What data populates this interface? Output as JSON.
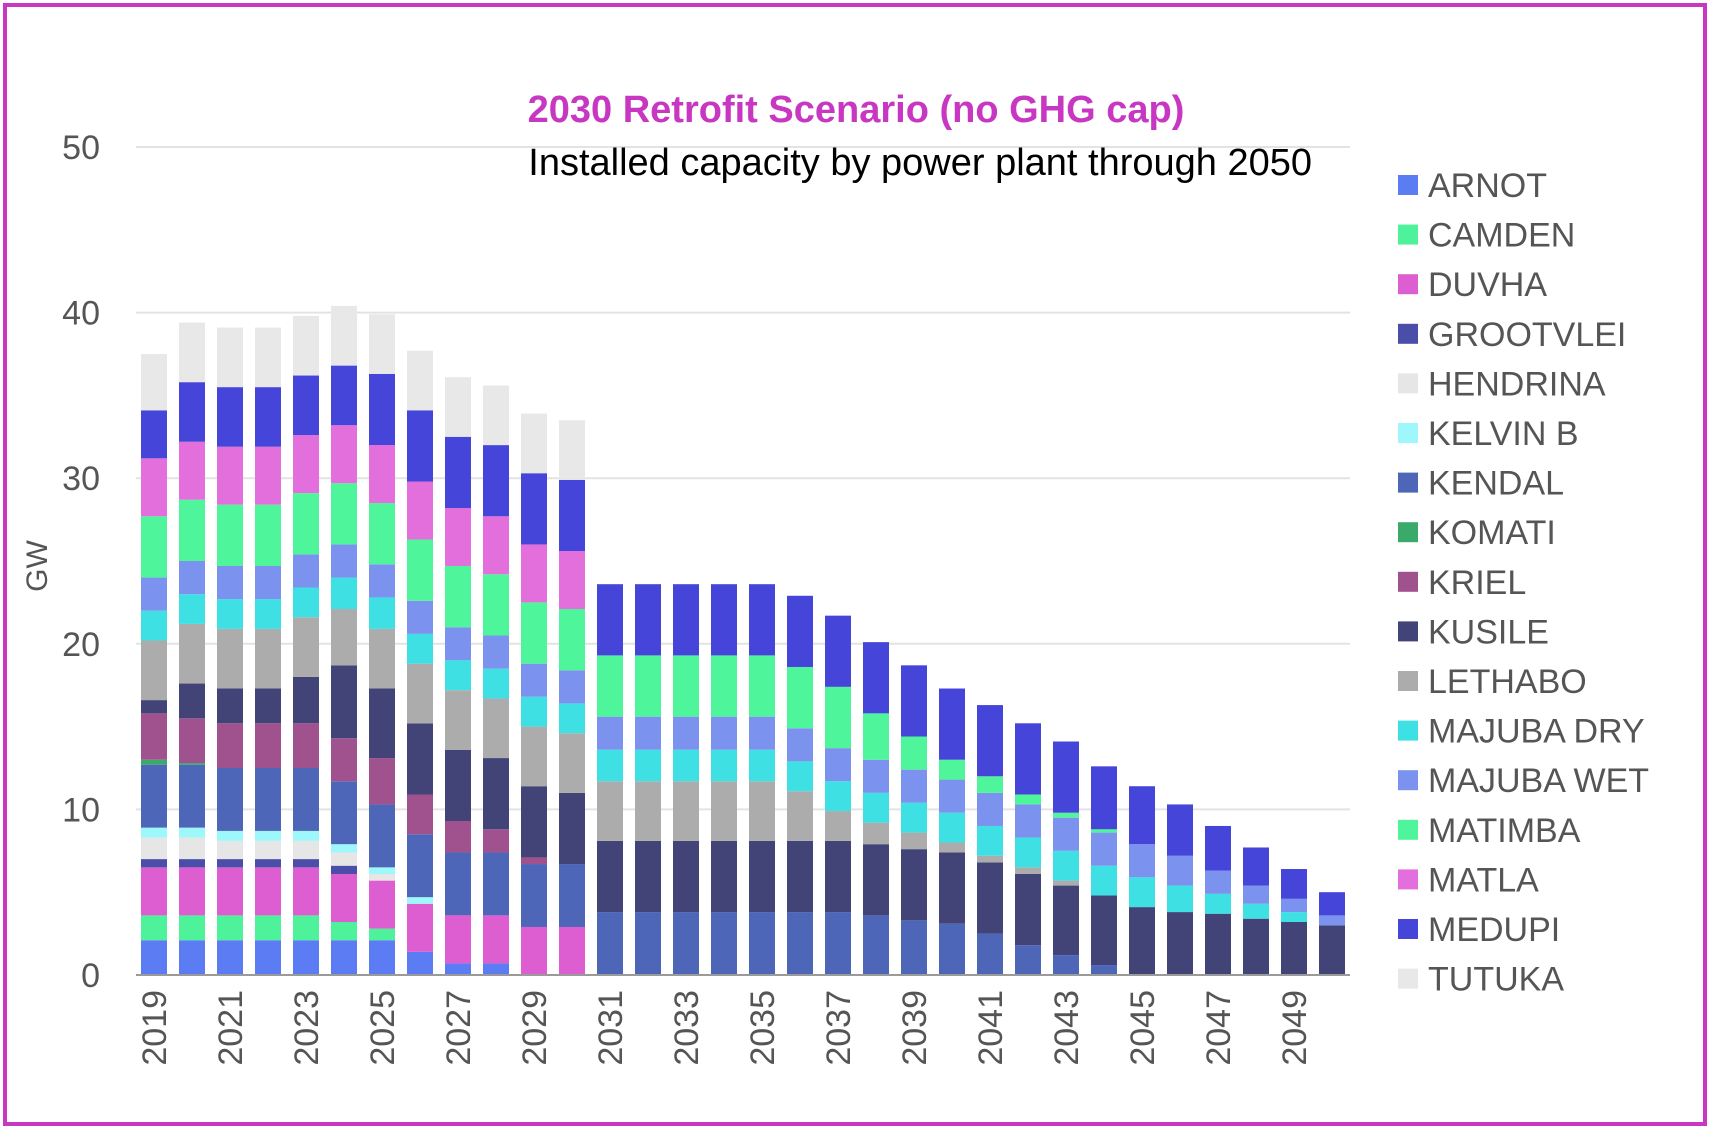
{
  "chart_data": {
    "type": "bar",
    "stacked": true,
    "title": "2030 Retrofit Scenario (no GHG cap)",
    "subtitle": "Installed capacity by power plant through 2050",
    "xlabel": "",
    "ylabel": "GW",
    "ylim": [
      0,
      50
    ],
    "yticks": [
      0,
      10,
      20,
      30,
      40,
      50
    ],
    "grid": true,
    "legend_position": "right",
    "categories": [
      "2019",
      "2020",
      "2021",
      "2022",
      "2023",
      "2024",
      "2025",
      "2026",
      "2027",
      "2028",
      "2029",
      "2030",
      "2031",
      "2032",
      "2033",
      "2034",
      "2035",
      "2036",
      "2037",
      "2038",
      "2039",
      "2040",
      "2041",
      "2042",
      "2043",
      "2044",
      "2045",
      "2046",
      "2047",
      "2048",
      "2049",
      "2050"
    ],
    "x_tick_labels": [
      "2019",
      "2021",
      "2023",
      "2025",
      "2027",
      "2029",
      "2031",
      "2033",
      "2035",
      "2037",
      "2039",
      "2041",
      "2043",
      "2045",
      "2047",
      "2049"
    ],
    "series": [
      {
        "name": "ARNOT",
        "color": "#5b7cf2",
        "values": [
          2.1,
          2.1,
          2.1,
          2.1,
          2.1,
          2.1,
          2.1,
          1.4,
          0.7,
          0.7,
          0,
          0,
          0,
          0,
          0,
          0,
          0,
          0,
          0,
          0,
          0,
          0,
          0,
          0,
          0,
          0,
          0,
          0,
          0,
          0,
          0,
          0
        ]
      },
      {
        "name": "CAMDEN",
        "color": "#4df29b",
        "values": [
          1.5,
          1.5,
          1.5,
          1.5,
          1.5,
          1.1,
          0.7,
          0,
          0,
          0,
          0,
          0,
          0,
          0,
          0,
          0,
          0,
          0,
          0,
          0,
          0,
          0,
          0,
          0,
          0,
          0,
          0,
          0,
          0,
          0,
          0,
          0
        ]
      },
      {
        "name": "DUVHA",
        "color": "#dd5ed0",
        "values": [
          2.9,
          2.9,
          2.9,
          2.9,
          2.9,
          2.9,
          2.9,
          2.9,
          2.9,
          2.9,
          2.9,
          2.9,
          0,
          0,
          0,
          0,
          0,
          0,
          0,
          0,
          0,
          0,
          0,
          0,
          0,
          0,
          0,
          0,
          0,
          0,
          0,
          0
        ]
      },
      {
        "name": "GROOTVLEI",
        "color": "#4a4ea8",
        "values": [
          0.5,
          0.5,
          0.5,
          0.5,
          0.5,
          0.5,
          0,
          0,
          0,
          0,
          0,
          0,
          0,
          0,
          0,
          0,
          0,
          0,
          0,
          0,
          0,
          0,
          0,
          0,
          0,
          0,
          0,
          0,
          0,
          0,
          0,
          0
        ]
      },
      {
        "name": "HENDRINA",
        "color": "#e6e6e6",
        "values": [
          1.3,
          1.3,
          1.1,
          1.1,
          1.1,
          0.8,
          0.4,
          0,
          0,
          0,
          0,
          0,
          0,
          0,
          0,
          0,
          0,
          0,
          0,
          0,
          0,
          0,
          0,
          0,
          0,
          0,
          0,
          0,
          0,
          0,
          0,
          0
        ]
      },
      {
        "name": "KELVIN B",
        "color": "#9ef7fa",
        "values": [
          0.6,
          0.6,
          0.6,
          0.6,
          0.6,
          0.5,
          0.4,
          0.4,
          0,
          0,
          0,
          0,
          0,
          0,
          0,
          0,
          0,
          0,
          0,
          0,
          0,
          0,
          0,
          0,
          0,
          0,
          0,
          0,
          0,
          0,
          0,
          0
        ]
      },
      {
        "name": "KENDAL",
        "color": "#4e66b8",
        "values": [
          3.8,
          3.8,
          3.8,
          3.8,
          3.8,
          3.8,
          3.8,
          3.8,
          3.8,
          3.8,
          3.8,
          3.8,
          3.8,
          3.8,
          3.8,
          3.8,
          3.8,
          3.8,
          3.8,
          3.6,
          3.3,
          3.1,
          2.5,
          1.8,
          1.2,
          0.6,
          0,
          0,
          0,
          0,
          0,
          0
        ]
      },
      {
        "name": "KOMATI",
        "color": "#3aaa6a",
        "values": [
          0.3,
          0.1,
          0,
          0,
          0,
          0,
          0,
          0,
          0,
          0,
          0,
          0,
          0,
          0,
          0,
          0,
          0,
          0,
          0,
          0,
          0,
          0,
          0,
          0,
          0,
          0,
          0,
          0,
          0,
          0,
          0,
          0
        ]
      },
      {
        "name": "KRIEL",
        "color": "#a0528e",
        "values": [
          2.8,
          2.7,
          2.7,
          2.7,
          2.7,
          2.6,
          2.8,
          2.4,
          1.9,
          1.4,
          0.4,
          0,
          0,
          0,
          0,
          0,
          0,
          0,
          0,
          0,
          0,
          0,
          0,
          0,
          0,
          0,
          0,
          0,
          0,
          0,
          0,
          0
        ]
      },
      {
        "name": "KUSILE",
        "color": "#424478",
        "values": [
          0.8,
          2.1,
          2.1,
          2.1,
          2.8,
          4.4,
          4.2,
          4.3,
          4.3,
          4.3,
          4.3,
          4.3,
          4.3,
          4.3,
          4.3,
          4.3,
          4.3,
          4.3,
          4.3,
          4.3,
          4.3,
          4.3,
          4.3,
          4.3,
          4.2,
          4.2,
          4.1,
          3.8,
          3.7,
          3.4,
          3.2,
          3.0
        ]
      },
      {
        "name": "LETHABO",
        "color": "#acacac",
        "values": [
          3.6,
          3.6,
          3.6,
          3.6,
          3.6,
          3.4,
          3.6,
          3.6,
          3.6,
          3.6,
          3.6,
          3.6,
          3.6,
          3.6,
          3.6,
          3.6,
          3.6,
          3.0,
          1.8,
          1.3,
          1.0,
          0.6,
          0.4,
          0.4,
          0.3,
          0,
          0,
          0,
          0,
          0,
          0,
          0
        ]
      },
      {
        "name": "MAJUBA DRY",
        "color": "#3ee0e3",
        "values": [
          1.8,
          1.8,
          1.8,
          1.8,
          1.8,
          1.9,
          1.9,
          1.8,
          1.8,
          1.8,
          1.8,
          1.8,
          1.9,
          1.9,
          1.9,
          1.9,
          1.9,
          1.8,
          1.8,
          1.8,
          1.8,
          1.8,
          1.8,
          1.8,
          1.8,
          1.8,
          1.8,
          1.6,
          1.2,
          0.9,
          0.6,
          0
        ]
      },
      {
        "name": "MAJUBA WET",
        "color": "#7b92ee",
        "values": [
          2.0,
          2.0,
          2.0,
          2.0,
          2.0,
          2.0,
          2.0,
          2.0,
          2.0,
          2.0,
          2.0,
          2.0,
          2.0,
          2.0,
          2.0,
          2.0,
          2.0,
          2.0,
          2.0,
          2.0,
          2.0,
          2.0,
          2.0,
          2.0,
          2.0,
          2.0,
          2.0,
          1.8,
          1.4,
          1.1,
          0.8,
          0.6
        ]
      },
      {
        "name": "MATIMBA",
        "color": "#4ef59a",
        "values": [
          3.7,
          3.7,
          3.7,
          3.7,
          3.7,
          3.7,
          3.7,
          3.7,
          3.7,
          3.7,
          3.7,
          3.7,
          3.7,
          3.7,
          3.7,
          3.7,
          3.7,
          3.7,
          3.7,
          2.8,
          2.0,
          1.2,
          1.0,
          0.6,
          0.3,
          0.2,
          0,
          0,
          0,
          0,
          0,
          0
        ]
      },
      {
        "name": "MATLA",
        "color": "#e26fdb",
        "values": [
          3.5,
          3.5,
          3.5,
          3.5,
          3.5,
          3.5,
          3.5,
          3.5,
          3.5,
          3.5,
          3.5,
          3.5,
          0,
          0,
          0,
          0,
          0,
          0,
          0,
          0,
          0,
          0,
          0,
          0,
          0,
          0,
          0,
          0,
          0,
          0,
          0,
          0
        ]
      },
      {
        "name": "MEDUPI",
        "color": "#4546d9",
        "values": [
          2.9,
          3.6,
          3.6,
          3.6,
          3.6,
          3.6,
          4.3,
          4.3,
          4.3,
          4.3,
          4.3,
          4.3,
          4.3,
          4.3,
          4.3,
          4.3,
          4.3,
          4.3,
          4.3,
          4.3,
          4.3,
          4.3,
          4.3,
          4.3,
          4.3,
          3.8,
          3.5,
          3.1,
          2.7,
          2.3,
          1.8,
          1.4
        ]
      },
      {
        "name": "TUTUKA",
        "color": "#e8e8e8",
        "values": [
          3.4,
          3.6,
          3.6,
          3.6,
          3.6,
          3.6,
          3.6,
          3.6,
          3.6,
          3.6,
          3.6,
          3.6,
          0,
          0,
          0,
          0,
          0,
          0,
          0,
          0,
          0,
          0,
          0,
          0,
          0,
          0,
          0,
          0,
          0,
          0,
          0,
          0
        ]
      }
    ]
  }
}
